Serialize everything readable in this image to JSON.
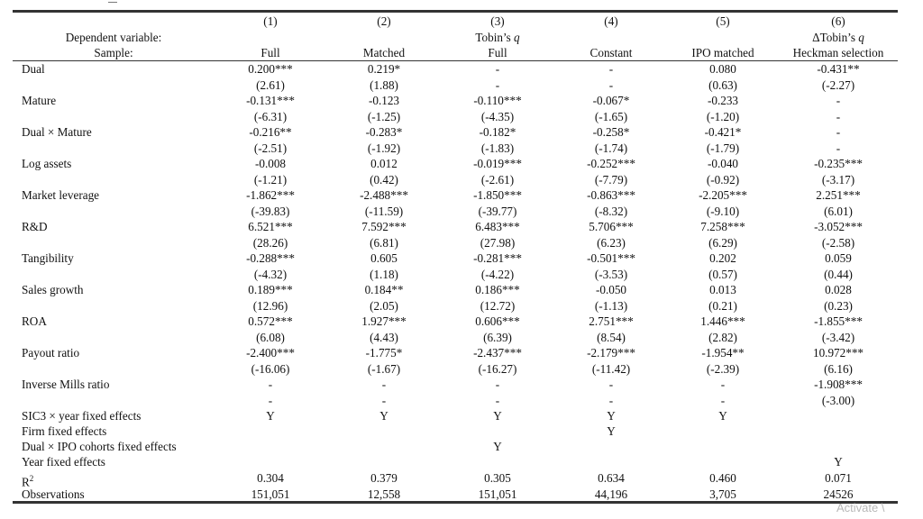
{
  "columns": {
    "numbers": [
      "(1)",
      "(2)",
      "(3)",
      "(4)",
      "(5)",
      "(6)"
    ],
    "dependent_label": "Dependent variable:",
    "sample_label": "Sample:",
    "dependent": [
      "",
      "",
      "Tobin’s q",
      "",
      "",
      "ΔTobin’s q"
    ],
    "samples": [
      "Full",
      "Matched",
      "Full",
      "Constant",
      "IPO matched",
      "Heckman selection"
    ]
  },
  "rows": [
    {
      "label": "Dual",
      "coef": [
        "0.200***",
        "0.219*",
        "-",
        "-",
        "0.080",
        "-0.431**"
      ],
      "t": [
        "(2.61)",
        "(1.88)",
        "-",
        "-",
        "(0.63)",
        "(-2.27)"
      ]
    },
    {
      "label": "Mature",
      "coef": [
        "-0.131***",
        "-0.123",
        "-0.110***",
        "-0.067*",
        "-0.233",
        "-"
      ],
      "t": [
        "(-6.31)",
        "(-1.25)",
        "(-4.35)",
        "(-1.65)",
        "(-1.20)",
        "-"
      ]
    },
    {
      "label": "Dual × Mature",
      "coef": [
        "-0.216**",
        "-0.283*",
        "-0.182*",
        "-0.258*",
        "-0.421*",
        "-"
      ],
      "t": [
        "(-2.51)",
        "(-1.92)",
        "(-1.83)",
        "(-1.74)",
        "(-1.79)",
        "-"
      ]
    },
    {
      "label": "Log assets",
      "coef": [
        "-0.008",
        "0.012",
        "-0.019***",
        "-0.252***",
        "-0.040",
        "-0.235***"
      ],
      "t": [
        "(-1.21)",
        "(0.42)",
        "(-2.61)",
        "(-7.79)",
        "(-0.92)",
        "(-3.17)"
      ]
    },
    {
      "label": "Market leverage",
      "coef": [
        "-1.862***",
        "-2.488***",
        "-1.850***",
        "-0.863***",
        "-2.205***",
        "2.251***"
      ],
      "t": [
        "(-39.83)",
        "(-11.59)",
        "(-39.77)",
        "(-8.32)",
        "(-9.10)",
        "(6.01)"
      ]
    },
    {
      "label": "R&D",
      "coef": [
        "6.521***",
        "7.592***",
        "6.483***",
        "5.706***",
        "7.258***",
        "-3.052***"
      ],
      "t": [
        "(28.26)",
        "(6.81)",
        "(27.98)",
        "(6.23)",
        "(6.29)",
        "(-2.58)"
      ]
    },
    {
      "label": "Tangibility",
      "coef": [
        "-0.288***",
        "0.605",
        "-0.281***",
        "-0.501***",
        "0.202",
        "0.059"
      ],
      "t": [
        "(-4.32)",
        "(1.18)",
        "(-4.22)",
        "(-3.53)",
        "(0.57)",
        "(0.44)"
      ]
    },
    {
      "label": "Sales growth",
      "coef": [
        "0.189***",
        "0.184**",
        "0.186***",
        "-0.050",
        "0.013",
        "0.028"
      ],
      "t": [
        "(12.96)",
        "(2.05)",
        "(12.72)",
        "(-1.13)",
        "(0.21)",
        "(0.23)"
      ]
    },
    {
      "label": "ROA",
      "coef": [
        "0.572***",
        "1.927***",
        "0.606***",
        "2.751***",
        "1.446***",
        "-1.855***"
      ],
      "t": [
        "(6.08)",
        "(4.43)",
        "(6.39)",
        "(8.54)",
        "(2.82)",
        "(-3.42)"
      ]
    },
    {
      "label": "Payout ratio",
      "coef": [
        "-2.400***",
        "-1.775*",
        "-2.437***",
        "-2.179***",
        "-1.954**",
        "10.972***"
      ],
      "t": [
        "(-16.06)",
        "(-1.67)",
        "(-16.27)",
        "(-11.42)",
        "(-2.39)",
        "(6.16)"
      ]
    },
    {
      "label": "Inverse Mills ratio",
      "coef": [
        "-",
        "-",
        "-",
        "-",
        "-",
        "-1.908***"
      ],
      "t": [
        "-",
        "-",
        "-",
        "-",
        "-",
        "(-3.00)"
      ]
    }
  ],
  "fixed_effects": [
    {
      "label": "SIC3 × year fixed effects",
      "values": [
        "Y",
        "Y",
        "Y",
        "Y",
        "Y",
        ""
      ]
    },
    {
      "label": "Firm fixed effects",
      "values": [
        "",
        "",
        "",
        "Y",
        "",
        ""
      ]
    },
    {
      "label": "Dual × IPO cohorts fixed effects",
      "values": [
        "",
        "",
        "Y",
        "",
        "",
        ""
      ]
    },
    {
      "label": "Year fixed effects",
      "values": [
        "",
        "",
        "",
        "",
        "",
        "Y"
      ]
    }
  ],
  "stats": [
    {
      "label": "R²",
      "values": [
        "0.304",
        "0.379",
        "0.305",
        "0.634",
        "0.460",
        "0.071"
      ]
    },
    {
      "label": "Observations",
      "values": [
        "151,051",
        "12,558",
        "151,051",
        "44,196",
        "3,705",
        "24526"
      ]
    }
  ],
  "watermark": "Activate \\"
}
